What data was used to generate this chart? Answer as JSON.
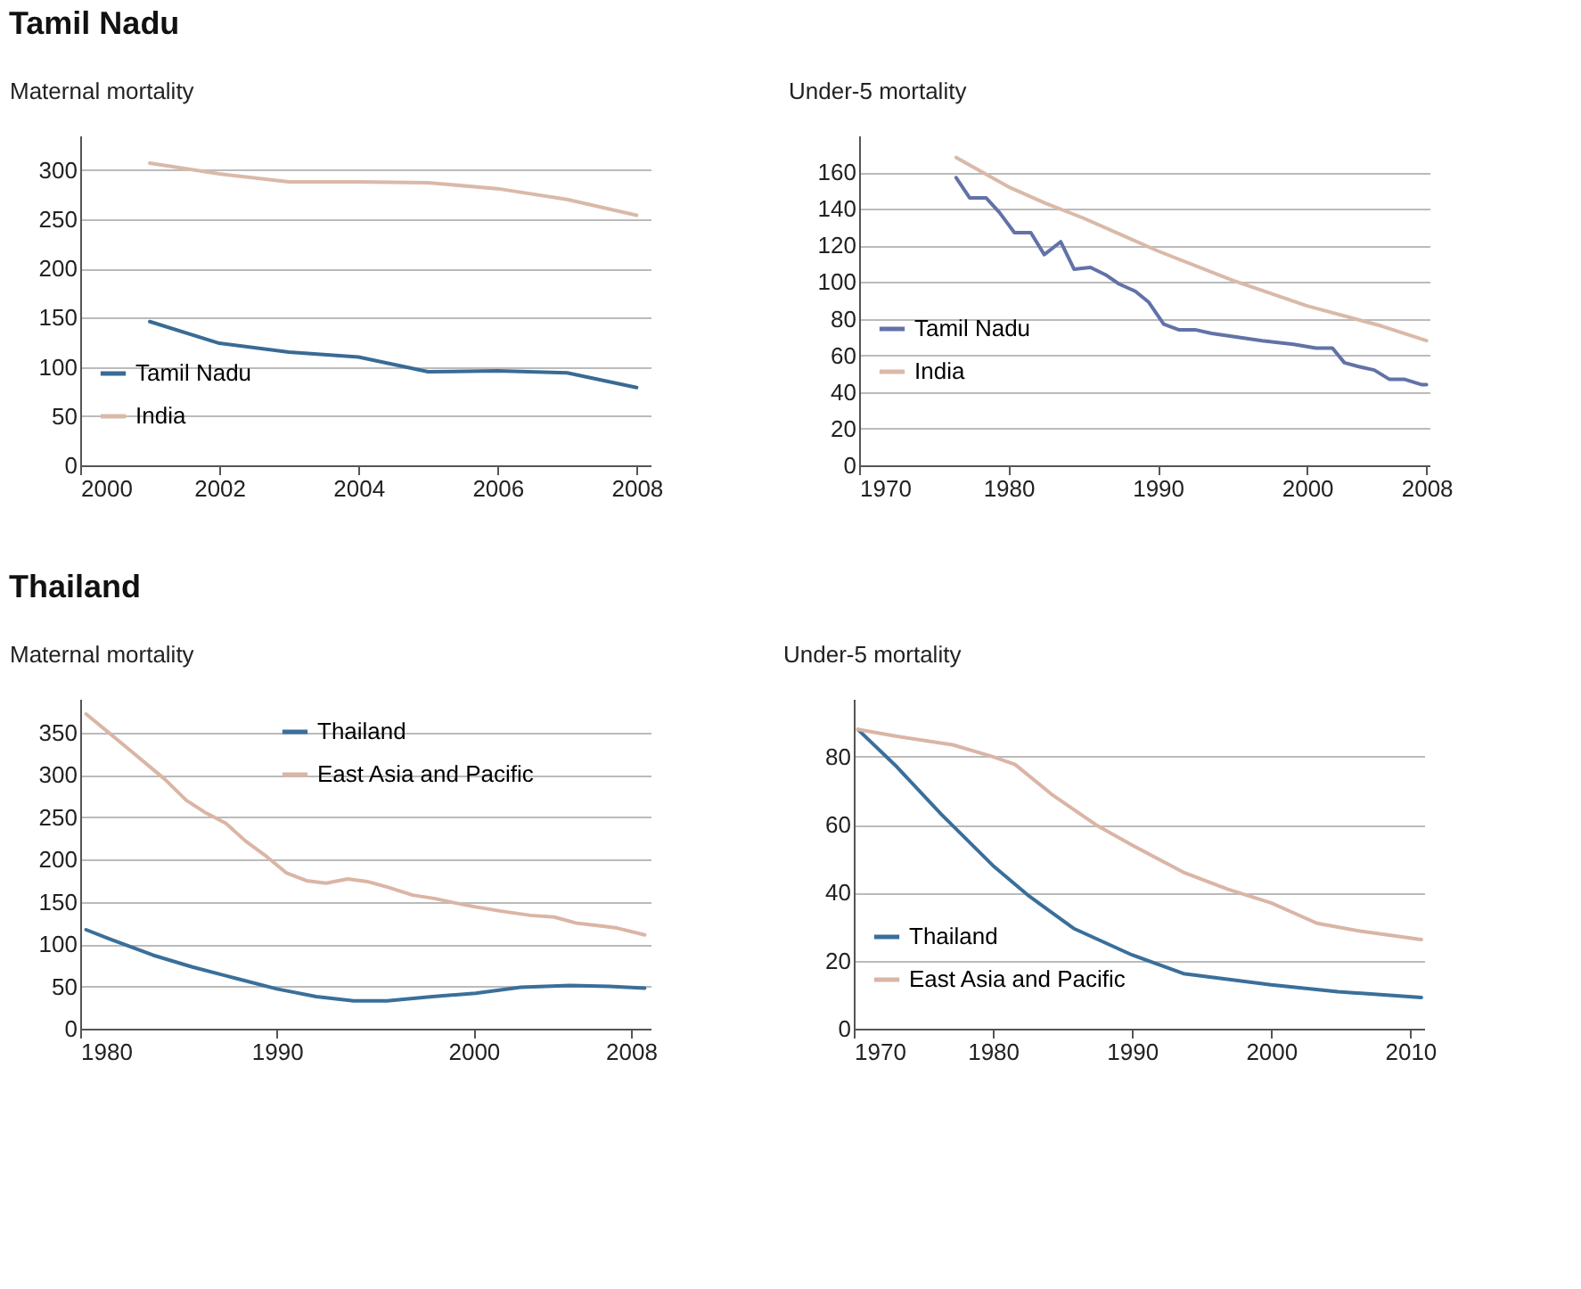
{
  "chart_data": [
    {
      "type": "line",
      "title": "Tamil Nadu",
      "ylabel": "Maternal mortality",
      "xlim": [
        2000,
        2008.2
      ],
      "xticks": [
        2000,
        2002,
        2004,
        2006,
        2008
      ],
      "ylim": [
        0,
        335
      ],
      "yticks": [
        0,
        50,
        100,
        150,
        200,
        250,
        300
      ],
      "grid": "y",
      "legend": "bottom left",
      "line_style": "solid",
      "series": [
        {
          "name": "Tamil Nadu",
          "color": "#3a6a96",
          "x": [
            2001,
            2002,
            2003,
            2004,
            2005,
            2006,
            2007,
            2008
          ],
          "values": [
            146,
            124,
            115,
            110,
            95,
            96,
            94,
            79
          ]
        },
        {
          "name": "India",
          "color": "#dab9a8",
          "x": [
            2001,
            2002,
            2003,
            2004,
            2005,
            2006,
            2007,
            2008
          ],
          "values": [
            307,
            296,
            288,
            288,
            287,
            281,
            270,
            254
          ]
        }
      ]
    },
    {
      "type": "line",
      "ylabel": "Under-5 mortality",
      "xlim": [
        1970,
        2008.2
      ],
      "xticks": [
        1970,
        1980,
        1990,
        2000,
        2008
      ],
      "ylim": [
        0,
        180
      ],
      "yticks": [
        0,
        20,
        40,
        60,
        80,
        100,
        120,
        140,
        160
      ],
      "grid": "y",
      "legend": "left",
      "line_style": "solid",
      "series": [
        {
          "name": "Tamil Nadu",
          "color": "#6272a8",
          "x": [
            1976.5,
            1977.4,
            1978.5,
            1979.4,
            1980.4,
            1981.5,
            1982.4,
            1983.5,
            1984.4,
            1985.5,
            1986.5,
            1987.4,
            1988.5,
            1989.4,
            1990.4,
            1991.4,
            1992.5,
            1993.6,
            1997,
            1999.1,
            2000.6,
            2001.7,
            2002.5,
            2003.4,
            2004.5,
            2005.5,
            2006.5,
            2007.7,
            2008
          ],
          "values": [
            157,
            146,
            146,
            138,
            127,
            127,
            115,
            122,
            107,
            108,
            104,
            99,
            95,
            89,
            77,
            74,
            74,
            72,
            68,
            66,
            64,
            64,
            56,
            54,
            52,
            47,
            47,
            44,
            44
          ]
        },
        {
          "name": "India",
          "color": "#dab9a8",
          "x": [
            1976.5,
            1980,
            1982.5,
            1985,
            1990,
            1995,
            2000,
            2005,
            2008
          ],
          "values": [
            168,
            152,
            143,
            135,
            117,
            101,
            87,
            76,
            68
          ]
        }
      ]
    },
    {
      "type": "line",
      "title": "Thailand",
      "ylabel": "Maternal mortality",
      "xlim": [
        1980,
        2009
      ],
      "xticks": [
        1980,
        1990,
        2000,
        2008
      ],
      "ylim": [
        0,
        390
      ],
      "yticks": [
        0,
        50,
        100,
        150,
        200,
        250,
        300,
        350
      ],
      "grid": "y",
      "legend": "top",
      "line_style": "solid",
      "series": [
        {
          "name": "Thailand",
          "color": "#3a6f9a",
          "x": [
            1980.3,
            1981.5,
            1983.7,
            1985.7,
            1988,
            1990,
            1992,
            1993.9,
            1995.6,
            1997.9,
            2000.1,
            2002.4,
            2004.9,
            2006.9,
            2008.7
          ],
          "values": [
            117,
            106,
            87,
            73,
            59,
            47,
            38,
            33,
            33,
            38,
            42,
            49,
            51,
            50,
            48
          ]
        },
        {
          "name": "East Asia and Pacific",
          "color": "#dab5a5",
          "x": [
            1980.3,
            1981.3,
            1982.5,
            1984.3,
            1985.4,
            1986.4,
            1987.4,
            1988.4,
            1989.4,
            1990.5,
            1991.5,
            1992.5,
            1993.6,
            1994.6,
            1995.7,
            1996.9,
            1998,
            1999,
            2000.1,
            2001.4,
            2002.9,
            2004.1,
            2005.2,
            2006.3,
            2007.3,
            2008.7
          ],
          "values": [
            372,
            353,
            330,
            295,
            270,
            255,
            243,
            222,
            205,
            184,
            175,
            172,
            177,
            174,
            167,
            158,
            154,
            149,
            144,
            139,
            134,
            132,
            125,
            122,
            119,
            111
          ]
        }
      ]
    },
    {
      "type": "line",
      "ylabel": "Under-5 mortality",
      "xlim": [
        1970,
        2011
      ],
      "xticks": [
        1970,
        1980,
        1990,
        2000,
        2010
      ],
      "ylim": [
        0,
        97
      ],
      "yticks": [
        0,
        20,
        40,
        60,
        80
      ],
      "grid": "y",
      "legend": "bottom left",
      "line_style": "solid",
      "series": [
        {
          "name": "Thailand",
          "color": "#3a6f9a",
          "x": [
            1970.3,
            1973.1,
            1976.3,
            1980,
            1982.6,
            1985.8,
            1990,
            1993.7,
            2000,
            2004.8,
            2010.8
          ],
          "values": [
            88,
            77,
            63,
            48,
            39,
            29.5,
            21.7,
            16.2,
            12.9,
            10.9,
            9.2
          ]
        },
        {
          "name": "East Asia and Pacific",
          "color": "#dab5a5",
          "x": [
            1970.3,
            1973.1,
            1977.1,
            1980,
            1981.6,
            1984.2,
            1987.4,
            1990,
            1993.7,
            1996.9,
            2000,
            2003.3,
            2006.4,
            2010.8
          ],
          "values": [
            88,
            86,
            83.5,
            80,
            77.7,
            69,
            60,
            54,
            46,
            41,
            37,
            31,
            28.7,
            26.2
          ]
        }
      ]
    }
  ]
}
